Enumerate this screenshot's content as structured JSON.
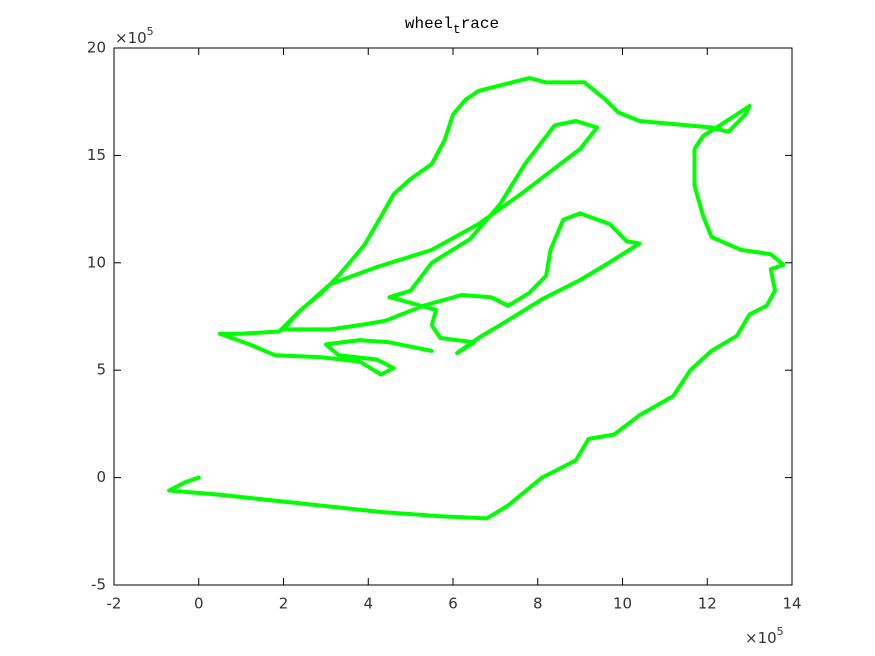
{
  "chart_data": {
    "type": "line",
    "title": [
      "wheel",
      "t",
      "race"
    ],
    "x_multiplier": [
      "×10",
      "5"
    ],
    "y_multiplier": [
      "×10",
      "5"
    ],
    "color": "#00ff00",
    "xlim": [
      -2,
      14
    ],
    "xticks": [
      -2,
      0,
      2,
      4,
      6,
      8,
      10,
      12,
      14
    ],
    "ylim": [
      -5,
      20
    ],
    "yticks": [
      -5,
      0,
      5,
      10,
      15,
      20
    ],
    "x": [
      0.0,
      -0.3,
      -0.7,
      0.5,
      2.4,
      4.3,
      5.7,
      6.8,
      7.3,
      8.1,
      8.9,
      9.2,
      9.8,
      10.4,
      11.2,
      11.6,
      12.1,
      12.7,
      13.0,
      13.4,
      13.6,
      13.5,
      13.8,
      13.5,
      12.8,
      12.1,
      11.9,
      11.7,
      11.7,
      11.9,
      12.3,
      13.0,
      12.9,
      12.5,
      12.1,
      10.4,
      9.9,
      9.6,
      9.1,
      8.2,
      7.8,
      6.6,
      6.3,
      6.0,
      5.8,
      5.5,
      5.0,
      4.6,
      4.2,
      3.9,
      3.3,
      2.9,
      2.4,
      2.0,
      3.1,
      3.8,
      4.4,
      5.3,
      6.2,
      6.9,
      7.3,
      7.8,
      8.2,
      8.3,
      8.6,
      9.0,
      9.7,
      10.1,
      10.4,
      9.6,
      9.0,
      8.1,
      7.2,
      6.6,
      6.1,
      6.5,
      5.7,
      5.5,
      5.6,
      4.7,
      4.5,
      5.0,
      5.5,
      6.4,
      7.1,
      7.7,
      8.4,
      8.9,
      9.4,
      9.0,
      8.4,
      7.6,
      6.6,
      5.5,
      4.2,
      3.1,
      2.3,
      1.9,
      1.0,
      0.5,
      1.2,
      1.8,
      2.9,
      3.8,
      4.3,
      4.6,
      4.2,
      3.3,
      3.0,
      3.8,
      4.5,
      5.5
    ],
    "values": [
      0.0,
      -0.2,
      -0.6,
      -0.8,
      -1.2,
      -1.6,
      -1.8,
      -1.9,
      -1.3,
      0.0,
      0.8,
      1.8,
      2.0,
      2.9,
      3.8,
      5.0,
      5.9,
      6.6,
      7.6,
      8.0,
      8.7,
      9.7,
      9.9,
      10.4,
      10.6,
      11.2,
      12.2,
      13.6,
      15.3,
      15.9,
      16.4,
      17.3,
      16.9,
      16.1,
      16.3,
      16.6,
      17.0,
      17.6,
      18.4,
      18.4,
      18.6,
      18.0,
      17.6,
      16.9,
      15.7,
      14.6,
      13.9,
      13.2,
      11.8,
      10.8,
      9.4,
      8.6,
      7.8,
      6.9,
      6.9,
      7.1,
      7.3,
      8.0,
      8.5,
      8.4,
      8.0,
      8.6,
      9.4,
      10.6,
      12.0,
      12.3,
      11.8,
      11.0,
      10.9,
      9.9,
      9.2,
      8.3,
      7.2,
      6.5,
      5.8,
      6.3,
      6.5,
      7.1,
      7.8,
      8.3,
      8.4,
      8.7,
      10.0,
      11.1,
      12.7,
      14.6,
      16.4,
      16.6,
      16.3,
      15.3,
      14.4,
      13.2,
      11.8,
      10.6,
      9.8,
      9.0,
      7.6,
      6.8,
      6.7,
      6.7,
      6.2,
      5.7,
      5.6,
      5.4,
      4.8,
      5.1,
      5.5,
      5.7,
      6.2,
      6.4,
      6.3,
      5.9
    ]
  }
}
